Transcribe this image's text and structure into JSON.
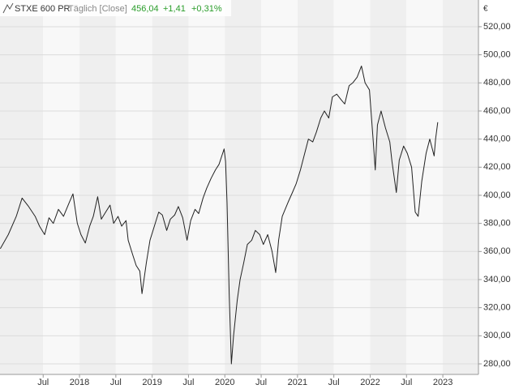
{
  "chart_data": {
    "type": "line",
    "title": "STXE 600 PR",
    "subtitle": "Täglich [Close]",
    "last_price": "456,04",
    "change": "+1,41",
    "change_percent": "+0,31%",
    "currency": "€",
    "x": [
      2016.91,
      2017.02,
      2017.13,
      2017.21,
      2017.3,
      2017.39,
      2017.45,
      2017.52,
      2017.58,
      2017.64,
      2017.71,
      2017.78,
      2017.86,
      2017.91,
      2017.97,
      2018.02,
      2018.08,
      2018.14,
      2018.19,
      2018.25,
      2018.3,
      2018.36,
      2018.42,
      2018.47,
      2018.53,
      2018.58,
      2018.64,
      2018.67,
      2018.73,
      2018.78,
      2018.83,
      2018.86,
      2018.92,
      2018.97,
      2019.03,
      2019.09,
      2019.14,
      2019.2,
      2019.25,
      2019.31,
      2019.36,
      2019.42,
      2019.48,
      2019.53,
      2019.59,
      2019.64,
      2019.7,
      2019.75,
      2019.81,
      2019.87,
      2019.92,
      2019.99,
      2020.01,
      2020.03,
      2020.06,
      2020.09,
      2020.12,
      2020.17,
      2020.21,
      2020.26,
      2020.31,
      2020.37,
      2020.42,
      2020.48,
      2020.53,
      2020.59,
      2020.65,
      2020.7,
      2020.74,
      2020.79,
      2020.87,
      2020.93,
      2020.98,
      2021.04,
      2021.09,
      2021.15,
      2021.21,
      2021.26,
      2021.32,
      2021.37,
      2021.43,
      2021.48,
      2021.54,
      2021.6,
      2021.65,
      2021.71,
      2021.76,
      2021.82,
      2021.88,
      2021.93,
      2021.99,
      2022.04,
      2022.07,
      2022.1,
      2022.15,
      2022.21,
      2022.27,
      2022.3,
      2022.36,
      2022.4,
      2022.46,
      2022.51,
      2022.57,
      2022.62,
      2022.66,
      2022.71,
      2022.77,
      2022.82,
      2022.88,
      2022.9,
      2022.93
    ],
    "series": [
      {
        "name": "STXE 600 PR",
        "color": "#222222",
        "values": [
          362,
          372,
          385,
          398,
          392,
          385,
          378,
          372,
          384,
          380,
          390,
          385,
          395,
          401,
          380,
          372,
          366,
          378,
          385,
          399,
          383,
          388,
          393,
          380,
          385,
          378,
          382,
          368,
          358,
          350,
          346,
          330,
          352,
          368,
          378,
          388,
          386,
          375,
          383,
          386,
          392,
          384,
          368,
          382,
          390,
          387,
          398,
          405,
          412,
          418,
          422,
          433,
          424,
          395,
          330,
          280,
          300,
          325,
          340,
          352,
          365,
          368,
          375,
          372,
          365,
          372,
          360,
          345,
          368,
          385,
          395,
          402,
          408,
          418,
          428,
          440,
          438,
          445,
          455,
          460,
          455,
          470,
          472,
          468,
          465,
          478,
          480,
          484,
          492,
          480,
          475,
          440,
          418,
          450,
          460,
          448,
          438,
          424,
          402,
          425,
          435,
          430,
          420,
          388,
          385,
          410,
          430,
          440,
          428,
          440,
          452
        ]
      }
    ],
    "xlim": [
      2016.906,
      2023.49
    ],
    "xticks": [
      {
        "value": 2017.5,
        "label": "Jul"
      },
      {
        "value": 2018,
        "label": "2018"
      },
      {
        "value": 2018.5,
        "label": "Jul"
      },
      {
        "value": 2019,
        "label": "2019"
      },
      {
        "value": 2019.5,
        "label": "Jul"
      },
      {
        "value": 2020,
        "label": "2020"
      },
      {
        "value": 2020.5,
        "label": "Jul"
      },
      {
        "value": 2021,
        "label": "2021"
      },
      {
        "value": 2021.5,
        "label": "Jul"
      },
      {
        "value": 2022,
        "label": "2022"
      },
      {
        "value": 2022.5,
        "label": "Jul"
      },
      {
        "value": 2023,
        "label": "2023"
      }
    ],
    "ylim": [
      272.5,
      539
    ],
    "yticks": [
      {
        "value": 280,
        "label": "280,00"
      },
      {
        "value": 300,
        "label": "300,00"
      },
      {
        "value": 320,
        "label": "320,00"
      },
      {
        "value": 340,
        "label": "340,00"
      },
      {
        "value": 360,
        "label": "360,00"
      },
      {
        "value": 380,
        "label": "380,00"
      },
      {
        "value": 400,
        "label": "400,00"
      },
      {
        "value": 420,
        "label": "420,00"
      },
      {
        "value": 440,
        "label": "440,00"
      },
      {
        "value": 460,
        "label": "460,00"
      },
      {
        "value": 480,
        "label": "480,00"
      },
      {
        "value": 500,
        "label": "500,00"
      },
      {
        "value": 520,
        "label": "520,00"
      }
    ],
    "grid": true
  }
}
